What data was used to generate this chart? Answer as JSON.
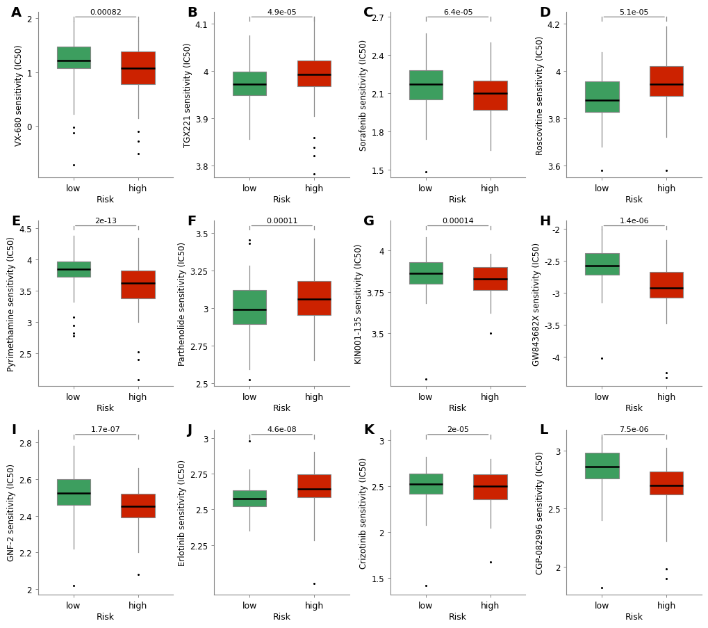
{
  "panels": [
    {
      "label": "A",
      "title": "VX-680 sensitivity (IC50)",
      "pvalue": "0.00082",
      "low": {
        "q1": 1.08,
        "median": 1.22,
        "q3": 1.48,
        "whisker_low": 0.22,
        "whisker_high": 1.95,
        "outliers": [
          -0.02,
          -0.12,
          -0.72
        ]
      },
      "high": {
        "q1": 0.78,
        "median": 1.08,
        "q3": 1.38,
        "whisker_low": 0.15,
        "whisker_high": 1.95,
        "outliers": [
          -0.1,
          -0.28,
          -0.52
        ]
      },
      "ylim": [
        -0.95,
        2.12
      ],
      "yticks": [
        0.0,
        1.0,
        2.0
      ]
    },
    {
      "label": "B",
      "title": "TGX221 sensitivity (IC50)",
      "pvalue": "4.9e-05",
      "low": {
        "q1": 3.948,
        "median": 3.972,
        "q3": 3.998,
        "whisker_low": 3.855,
        "whisker_high": 4.075,
        "outliers": []
      },
      "high": {
        "q1": 3.968,
        "median": 3.992,
        "q3": 4.022,
        "whisker_low": 3.905,
        "whisker_high": 4.115,
        "outliers": [
          3.858,
          3.838,
          3.82,
          3.782
        ]
      },
      "ylim": [
        3.775,
        4.125
      ],
      "yticks": [
        3.8,
        3.9,
        4.0,
        4.1
      ]
    },
    {
      "label": "C",
      "title": "Sorafenib sensitivity (IC50)",
      "pvalue": "6.4e-05",
      "low": {
        "q1": 2.05,
        "median": 2.17,
        "q3": 2.28,
        "whisker_low": 1.74,
        "whisker_high": 2.57,
        "outliers": [
          1.48
        ]
      },
      "high": {
        "q1": 1.97,
        "median": 2.1,
        "q3": 2.2,
        "whisker_low": 1.65,
        "whisker_high": 2.5,
        "outliers": []
      },
      "ylim": [
        1.44,
        2.74
      ],
      "yticks": [
        1.5,
        1.8,
        2.1,
        2.4,
        2.7
      ]
    },
    {
      "label": "D",
      "title": "Roscovitine sensitivity (IC50)",
      "pvalue": "5.1e-05",
      "low": {
        "q1": 3.825,
        "median": 3.875,
        "q3": 3.955,
        "whisker_low": 3.68,
        "whisker_high": 4.08,
        "outliers": [
          3.58
        ]
      },
      "high": {
        "q1": 3.895,
        "median": 3.945,
        "q3": 4.02,
        "whisker_low": 3.72,
        "whisker_high": 4.19,
        "outliers": [
          3.58
        ]
      },
      "ylim": [
        3.55,
        4.25
      ],
      "yticks": [
        3.6,
        3.8,
        4.0,
        4.2
      ]
    },
    {
      "label": "E",
      "title": "Pyrimethamine sensitivity (IC50)",
      "pvalue": "2e-13",
      "low": {
        "q1": 3.72,
        "median": 3.85,
        "q3": 3.97,
        "whisker_low": 3.32,
        "whisker_high": 4.38,
        "outliers": [
          3.08,
          2.95,
          2.82,
          2.78
        ]
      },
      "high": {
        "q1": 3.38,
        "median": 3.62,
        "q3": 3.82,
        "whisker_low": 3.0,
        "whisker_high": 4.35,
        "outliers": [
          2.52,
          2.4,
          2.08
        ]
      },
      "ylim": [
        1.98,
        4.62
      ],
      "yticks": [
        2.5,
        3.0,
        3.5,
        4.0,
        4.5
      ]
    },
    {
      "label": "F",
      "title": "Parthenolide sensitivity (IC50)",
      "pvalue": "0.00011",
      "low": {
        "q1": 2.89,
        "median": 2.99,
        "q3": 3.12,
        "whisker_low": 2.59,
        "whisker_high": 3.28,
        "outliers": [
          3.45,
          3.43,
          2.52
        ]
      },
      "high": {
        "q1": 2.95,
        "median": 3.06,
        "q3": 3.18,
        "whisker_low": 2.65,
        "whisker_high": 3.46,
        "outliers": []
      },
      "ylim": [
        2.48,
        3.58
      ],
      "yticks": [
        2.5,
        2.75,
        3.0,
        3.25,
        3.5
      ]
    },
    {
      "label": "G",
      "title": "KIN001-135 sensitivity (IC50)",
      "pvalue": "0.00014",
      "low": {
        "q1": 3.8,
        "median": 3.86,
        "q3": 3.93,
        "whisker_low": 3.68,
        "whisker_high": 4.08,
        "outliers": [
          3.22
        ]
      },
      "high": {
        "q1": 3.76,
        "median": 3.83,
        "q3": 3.9,
        "whisker_low": 3.62,
        "whisker_high": 3.98,
        "outliers": [
          3.5
        ]
      },
      "ylim": [
        3.18,
        4.18
      ],
      "yticks": [
        3.5,
        3.75,
        4.0
      ]
    },
    {
      "label": "H",
      "title": "GW843682X sensitivity (IC50)",
      "pvalue": "1.4e-06",
      "low": {
        "q1": -2.72,
        "median": -2.58,
        "q3": -2.38,
        "whisker_low": -3.15,
        "whisker_high": -2.02,
        "outliers": [
          -4.02
        ]
      },
      "high": {
        "q1": -3.08,
        "median": -2.92,
        "q3": -2.68,
        "whisker_low": -3.48,
        "whisker_high": -2.18,
        "outliers": [
          -4.25,
          -4.32
        ]
      },
      "ylim": [
        -4.45,
        -1.88
      ],
      "yticks": [
        -4.0,
        -3.5,
        -3.0,
        -2.5,
        -2.0
      ]
    },
    {
      "label": "I",
      "title": "GNF-2 sensitivity (IC50)",
      "pvalue": "1.7e-07",
      "low": {
        "q1": 2.46,
        "median": 2.525,
        "q3": 2.6,
        "whisker_low": 2.22,
        "whisker_high": 2.78,
        "outliers": [
          2.02
        ]
      },
      "high": {
        "q1": 2.39,
        "median": 2.45,
        "q3": 2.52,
        "whisker_low": 2.2,
        "whisker_high": 2.66,
        "outliers": [
          2.08
        ]
      },
      "ylim": [
        1.97,
        2.87
      ],
      "yticks": [
        2.0,
        2.2,
        2.4,
        2.6,
        2.8
      ]
    },
    {
      "label": "J",
      "title": "Erlotinib sensitivity (IC50)",
      "pvalue": "4.6e-08",
      "low": {
        "q1": 2.52,
        "median": 2.575,
        "q3": 2.635,
        "whisker_low": 2.35,
        "whisker_high": 2.78,
        "outliers": [
          2.98
        ]
      },
      "high": {
        "q1": 2.585,
        "median": 2.645,
        "q3": 2.745,
        "whisker_low": 2.28,
        "whisker_high": 2.9,
        "outliers": [
          1.98
        ]
      },
      "ylim": [
        1.9,
        3.06
      ],
      "yticks": [
        2.25,
        2.5,
        2.75,
        3.0
      ]
    },
    {
      "label": "K",
      "title": "Crizotinib sensitivity (IC50)",
      "pvalue": "2e-05",
      "low": {
        "q1": 2.42,
        "median": 2.53,
        "q3": 2.64,
        "whisker_low": 2.08,
        "whisker_high": 2.82,
        "outliers": [
          1.42
        ]
      },
      "high": {
        "q1": 2.36,
        "median": 2.5,
        "q3": 2.63,
        "whisker_low": 2.05,
        "whisker_high": 2.8,
        "outliers": [
          1.68
        ]
      },
      "ylim": [
        1.32,
        3.12
      ],
      "yticks": [
        1.5,
        2.0,
        2.5,
        3.0
      ]
    },
    {
      "label": "L",
      "title": "CGP-082996 sensitivity (IC50)",
      "pvalue": "7.5e-06",
      "low": {
        "q1": 2.76,
        "median": 2.86,
        "q3": 2.98,
        "whisker_low": 2.4,
        "whisker_high": 3.12,
        "outliers": [
          1.82
        ]
      },
      "high": {
        "q1": 2.62,
        "median": 2.7,
        "q3": 2.82,
        "whisker_low": 2.22,
        "whisker_high": 3.02,
        "outliers": [
          1.9,
          1.98
        ]
      },
      "ylim": [
        1.76,
        3.18
      ],
      "yticks": [
        2.0,
        2.5,
        3.0
      ]
    }
  ],
  "green_color": "#3d9e5f",
  "red_color": "#cc2200",
  "background_color": "#ffffff",
  "box_width": 0.52,
  "xlabel": "Risk",
  "xtick_labels": [
    "low",
    "high"
  ]
}
